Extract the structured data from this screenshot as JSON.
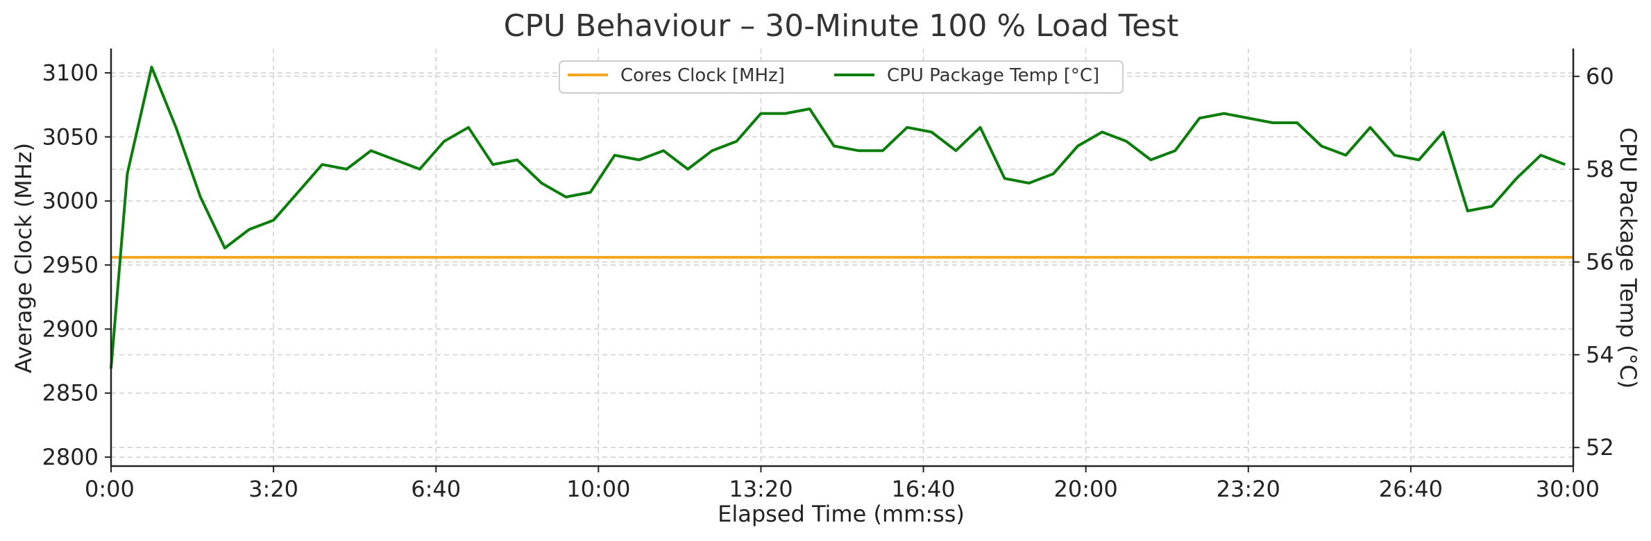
{
  "chart_data": {
    "type": "line",
    "title": "CPU Behaviour – 30-Minute 100 % Load Test",
    "xlabel": "Elapsed Time (mm:ss)",
    "ylabel": "Average Clock (MHz)",
    "y2label": "CPU Package Temp (°C)",
    "x_ticks": [
      "0:00",
      "3:20",
      "6:40",
      "10:00",
      "13:20",
      "16:40",
      "20:00",
      "23:20",
      "26:40",
      "30:00"
    ],
    "y_ticks": [
      "2800",
      "2850",
      "2900",
      "2950",
      "3000",
      "3050",
      "3100"
    ],
    "y2_ticks": [
      "52",
      "54",
      "56",
      "58",
      "60"
    ],
    "xlim_seconds": [
      0,
      1800
    ],
    "ylim": [
      2793,
      3119
    ],
    "y2lim": [
      51.6,
      60.6
    ],
    "grid": true,
    "legend_position": "top-center",
    "x_seconds": [
      0,
      20,
      50,
      80,
      110,
      140,
      170,
      200,
      230,
      260,
      290,
      320,
      350,
      380,
      410,
      440,
      470,
      500,
      530,
      560,
      590,
      620,
      650,
      680,
      710,
      740,
      770,
      800,
      830,
      860,
      890,
      920,
      950,
      980,
      1010,
      1040,
      1070,
      1100,
      1130,
      1160,
      1190,
      1220,
      1250,
      1280,
      1310,
      1340,
      1370,
      1400,
      1430,
      1460,
      1490,
      1520,
      1550,
      1580,
      1610,
      1640,
      1670,
      1700,
      1730,
      1760,
      1790
    ],
    "series": [
      {
        "name": "Cores Clock [MHz]",
        "axis": "left",
        "color": "#f5a623",
        "constant_value": 2956
      },
      {
        "name": "CPU Package Temp [°C]",
        "axis": "right",
        "color": "#0a7d0a",
        "values": [
          53.7,
          57.9,
          60.2,
          58.9,
          57.4,
          56.3,
          56.7,
          56.9,
          57.5,
          58.1,
          58.0,
          58.4,
          58.2,
          58.0,
          58.6,
          58.9,
          58.1,
          58.2,
          57.7,
          57.4,
          57.5,
          58.3,
          58.2,
          58.4,
          58.0,
          58.4,
          58.6,
          59.2,
          59.2,
          59.3,
          58.5,
          58.4,
          58.4,
          58.9,
          58.8,
          58.4,
          58.9,
          57.8,
          57.7,
          57.9,
          58.5,
          58.8,
          58.6,
          58.2,
          58.4,
          59.1,
          59.2,
          59.1,
          59.0,
          59.0,
          58.5,
          58.3,
          58.9,
          58.3,
          58.2,
          58.8,
          57.1,
          57.2,
          57.8,
          58.3,
          58.1
        ]
      }
    ]
  }
}
